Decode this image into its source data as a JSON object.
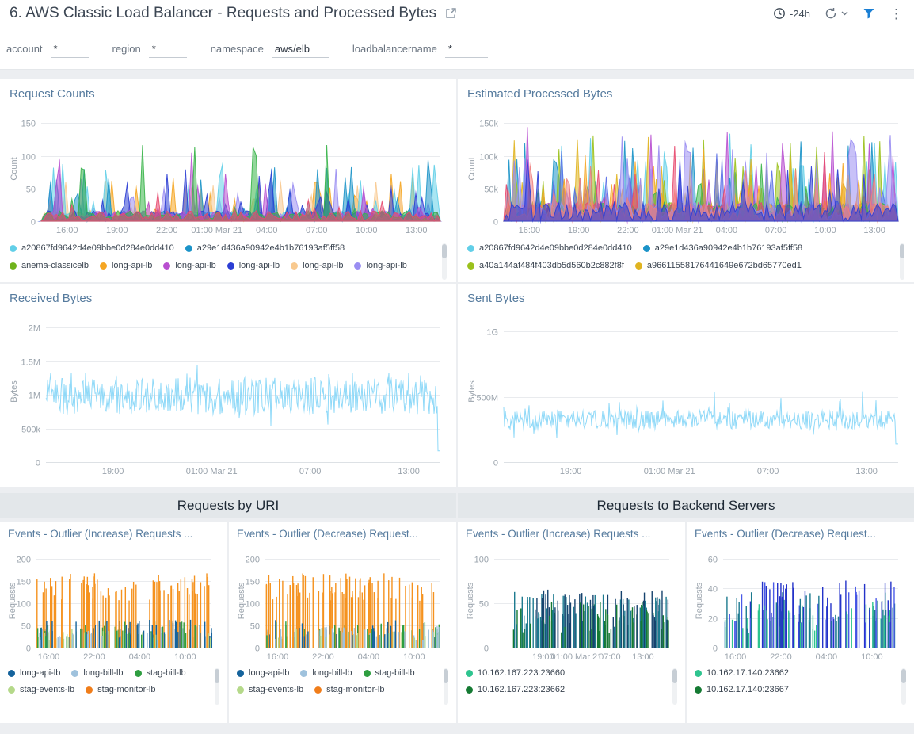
{
  "header": {
    "title": "6. AWS Classic Load Balancer - Requests and Processed Bytes",
    "time_range": "-24h"
  },
  "filters": [
    {
      "label": "account",
      "value": "*"
    },
    {
      "label": "region",
      "value": "*"
    },
    {
      "label": "namespace",
      "value": "aws/elb"
    },
    {
      "label": "loadbalancername",
      "value": "*"
    }
  ],
  "sections": {
    "uri": "Requests by URI",
    "backend": "Requests to Backend Servers"
  },
  "panels": {
    "requestCounts": {
      "title": "Request Counts",
      "legend": [
        {
          "label": "a20867fd9642d4e09bbe0d284e0dd410",
          "color": "#62cfe8"
        },
        {
          "label": "a29e1d436a90942e4b1b76193af5ff58",
          "color": "#1b93c8"
        },
        {
          "label": "anema-classicelb",
          "color": "#6fb31c"
        },
        {
          "label": "long-api-lb",
          "color": "#f5a623"
        },
        {
          "label": "long-api-lb",
          "color": "#b84fd0"
        },
        {
          "label": "long-api-lb",
          "color": "#2c3ed4"
        },
        {
          "label": "long-api-lb",
          "color": "#f8c98f"
        },
        {
          "label": "long-api-lb",
          "color": "#9a8ef2"
        }
      ],
      "chart": {
        "type": "areas",
        "seed": 11,
        "ymax": 160,
        "points": 130,
        "basef": 0.1,
        "ylabel": "Count",
        "padL": 40,
        "yticks": [
          {
            "v": 0,
            "l": "0"
          },
          {
            "v": 50,
            "l": "50"
          },
          {
            "v": 100,
            "l": "100"
          },
          {
            "v": 150,
            "l": "150"
          }
        ],
        "xticks": [
          {
            "f": 0.065,
            "l": "16:00"
          },
          {
            "f": 0.19,
            "l": "19:00"
          },
          {
            "f": 0.315,
            "l": "22:00"
          },
          {
            "f": 0.44,
            "l": "01:00 Mar 21"
          },
          {
            "f": 0.565,
            "l": "04:00"
          },
          {
            "f": 0.69,
            "l": "07:00"
          },
          {
            "f": 0.815,
            "l": "10:00"
          },
          {
            "f": 0.94,
            "l": "13:00"
          }
        ],
        "series": [
          {
            "color": "#f5a623",
            "amp": 0.5,
            "p": 0.2
          },
          {
            "color": "#f8c98f",
            "amp": 0.42,
            "p": 0.24
          },
          {
            "color": "#9a8ef2",
            "amp": 0.5,
            "p": 0.24
          },
          {
            "color": "#62cfe8",
            "amp": 0.55,
            "p": 0.3
          },
          {
            "color": "#1b93c8",
            "amp": 0.6,
            "p": 0.24
          },
          {
            "color": "#2c3ed4",
            "amp": 0.52,
            "p": 0.2
          },
          {
            "color": "#b84fd0",
            "amp": 0.9,
            "p": 0.1
          },
          {
            "color": "#38b449",
            "amp": 0.88,
            "p": 0.07
          },
          {
            "color": "#e84a6f",
            "amp": 0.3,
            "p": 0.12
          }
        ]
      }
    },
    "processedBytes": {
      "title": "Estimated Processed Bytes",
      "legend": [
        {
          "label": "a20867fd9642d4e09bbe0d284e0dd410",
          "color": "#62cfe8"
        },
        {
          "label": "a29e1d436a90942e4b1b76193af5ff58",
          "color": "#1b93c8"
        },
        {
          "label": "a40a144af484f403db5d560b2c882f8f",
          "color": "#9bc11c"
        },
        {
          "label": "a96611558176441649e672bd65770ed1",
          "color": "#e0b420"
        }
      ],
      "chart": {
        "type": "areas",
        "seed": 47,
        "ymax": 160,
        "points": 150,
        "basef": 0.18,
        "ylabel": "Count",
        "padL": 46,
        "yticks": [
          {
            "v": 0,
            "l": "0"
          },
          {
            "v": 50,
            "l": "50k"
          },
          {
            "v": 100,
            "l": "100k"
          },
          {
            "v": 150,
            "l": "150k"
          }
        ],
        "xticks": [
          {
            "f": 0.065,
            "l": "16:00"
          },
          {
            "f": 0.19,
            "l": "19:00"
          },
          {
            "f": 0.315,
            "l": "22:00"
          },
          {
            "f": 0.44,
            "l": "01:00 Mar 21"
          },
          {
            "f": 0.565,
            "l": "04:00"
          },
          {
            "f": 0.69,
            "l": "07:00"
          },
          {
            "f": 0.815,
            "l": "10:00"
          },
          {
            "f": 0.94,
            "l": "13:00"
          }
        ],
        "series": [
          {
            "color": "#62cfe8",
            "amp": 0.85,
            "p": 0.3
          },
          {
            "color": "#1b93c8",
            "amp": 0.8,
            "p": 0.26
          },
          {
            "color": "#9bc11c",
            "amp": 0.9,
            "p": 0.2
          },
          {
            "color": "#e0b420",
            "amp": 0.85,
            "p": 0.24
          },
          {
            "color": "#b84fd0",
            "amp": 0.9,
            "p": 0.16
          },
          {
            "color": "#5a6fe8",
            "amp": 0.8,
            "p": 0.2
          },
          {
            "color": "#f5a623",
            "amp": 0.7,
            "p": 0.24
          },
          {
            "color": "#38b449",
            "amp": 0.7,
            "p": 0.18
          },
          {
            "color": "#e84a6f",
            "amp": 0.75,
            "p": 0.14
          },
          {
            "color": "#9a8ef2",
            "amp": 0.85,
            "p": 0.22
          },
          {
            "color": "#f08080",
            "amp": 0.6,
            "p": 0.2
          },
          {
            "color": "#2c3ed4",
            "amp": 0.8,
            "p": 0.16
          }
        ]
      }
    },
    "receivedBytes": {
      "title": "Received Bytes",
      "chart": {
        "type": "noise",
        "seed": 21,
        "ymax": 2.1,
        "base": 0.47,
        "spread": 0.26,
        "spike": 0.16,
        "end": 0.08,
        "fmin": 0.17,
        "fmax": 0.72,
        "color": "#8fd9f8",
        "ylabel": "Bytes",
        "padL": 46,
        "yticks": [
          {
            "v": 0,
            "l": "0"
          },
          {
            "v": 0.5,
            "l": "500k"
          },
          {
            "v": 1,
            "l": "1M"
          },
          {
            "v": 1.5,
            "l": "1.5M"
          },
          {
            "v": 2,
            "l": "2M"
          }
        ],
        "xticks": [
          {
            "f": 0.17,
            "l": "19:00"
          },
          {
            "f": 0.42,
            "l": "01:00 Mar 21"
          },
          {
            "f": 0.67,
            "l": "07:00"
          },
          {
            "f": 0.92,
            "l": "13:00"
          }
        ]
      }
    },
    "sentBytes": {
      "title": "Sent Bytes",
      "chart": {
        "type": "noise",
        "seed": 77,
        "ymax": 1.08,
        "base": 0.3,
        "spread": 0.13,
        "spike": 0.14,
        "end": 0.13,
        "fmin": 0.14,
        "fmax": 0.53,
        "color": "#8fd9f8",
        "ylabel": "Bytes",
        "padL": 46,
        "yticks": [
          {
            "v": 0,
            "l": "0"
          },
          {
            "v": 0.5,
            "l": "500M"
          },
          {
            "v": 1,
            "l": "1G"
          }
        ],
        "xticks": [
          {
            "f": 0.17,
            "l": "19:00"
          },
          {
            "f": 0.42,
            "l": "01:00 Mar 21"
          },
          {
            "f": 0.67,
            "l": "07:00"
          },
          {
            "f": 0.92,
            "l": "13:00"
          }
        ]
      }
    },
    "uriIncrease": {
      "title": "Events - Outlier (Increase) Requests ...",
      "legend": [
        {
          "label": "long-api-lb",
          "color": "#15639c"
        },
        {
          "label": "long-bill-lb",
          "color": "#9fc2dd"
        },
        {
          "label": "stag-bill-lb",
          "color": "#2e9e40"
        },
        {
          "label": "stag-events-lb",
          "color": "#b5d98a"
        },
        {
          "label": "stag-monitor-lb",
          "color": "#f07d1a"
        }
      ],
      "chart": {
        "type": "bars",
        "seed": 31,
        "ymax": 210,
        "count": 240,
        "ylabel": "Requests",
        "padL": 36,
        "yticks": [
          {
            "v": 0,
            "l": "0"
          },
          {
            "v": 50,
            "l": "50"
          },
          {
            "v": 100,
            "l": "100"
          },
          {
            "v": 150,
            "l": "150"
          },
          {
            "v": 200,
            "l": "200"
          }
        ],
        "xticks": [
          {
            "f": 0.07,
            "l": "16:00"
          },
          {
            "f": 0.33,
            "l": "22:00"
          },
          {
            "f": 0.59,
            "l": "04:00"
          },
          {
            "f": 0.85,
            "l": "10:00"
          }
        ],
        "colors": [
          {
            "color": "#f5921e",
            "min": 0.5,
            "max": 0.8
          },
          {
            "color": "#f5921e",
            "min": 0.55,
            "max": 0.78
          },
          {
            "color": "#15639c",
            "min": 0.1,
            "max": 0.3
          },
          {
            "color": "#2e9e40",
            "min": 0.1,
            "max": 0.28
          },
          {
            "color": "#9fc2dd",
            "min": 0.08,
            "max": 0.24
          },
          {
            "color": "#b5d98a",
            "min": 0.08,
            "max": 0.2
          }
        ]
      }
    },
    "uriDecrease": {
      "title": "Events - Outlier (Decrease) Request...",
      "legend": [
        {
          "label": "long-api-lb",
          "color": "#15639c"
        },
        {
          "label": "long-bill-lb",
          "color": "#9fc2dd"
        },
        {
          "label": "stag-bill-lb",
          "color": "#2e9e40"
        },
        {
          "label": "stag-events-lb",
          "color": "#b5d98a"
        },
        {
          "label": "stag-monitor-lb",
          "color": "#f07d1a"
        }
      ],
      "chart": {
        "type": "bars",
        "seed": 59,
        "ymax": 210,
        "count": 230,
        "ylabel": "Requests",
        "padL": 36,
        "yticks": [
          {
            "v": 0,
            "l": "0"
          },
          {
            "v": 50,
            "l": "50"
          },
          {
            "v": 100,
            "l": "100"
          },
          {
            "v": 150,
            "l": "150"
          },
          {
            "v": 200,
            "l": "200"
          }
        ],
        "xticks": [
          {
            "f": 0.07,
            "l": "16:00"
          },
          {
            "f": 0.33,
            "l": "22:00"
          },
          {
            "f": 0.59,
            "l": "04:00"
          },
          {
            "f": 0.85,
            "l": "10:00"
          }
        ],
        "colors": [
          {
            "color": "#f5921e",
            "min": 0.5,
            "max": 0.8
          },
          {
            "color": "#f5921e",
            "min": 0.52,
            "max": 0.76
          },
          {
            "color": "#15639c",
            "min": 0.1,
            "max": 0.3
          },
          {
            "color": "#2e9e40",
            "min": 0.1,
            "max": 0.28
          },
          {
            "color": "#9fc2dd",
            "min": 0.08,
            "max": 0.24
          },
          {
            "color": "#b5d98a",
            "min": 0.08,
            "max": 0.2
          }
        ]
      }
    },
    "backendIncrease": {
      "title": "Events - Outlier (Increase) Requests ...",
      "legend": [
        {
          "label": "10.162.167.223:23660",
          "color": "#2ec48f"
        },
        {
          "label": "10.162.167.223:23662",
          "color": "#157a33"
        }
      ],
      "chart": {
        "type": "bars",
        "seed": 83,
        "ymax": 105,
        "count": 170,
        "xmin": 0.1,
        "ylabel": "Requests",
        "padL": 36,
        "yticks": [
          {
            "v": 0,
            "l": "0"
          },
          {
            "v": 50,
            "l": "50"
          },
          {
            "v": 100,
            "l": "100"
          }
        ],
        "xticks": [
          {
            "f": 0.28,
            "l": "19:00"
          },
          {
            "f": 0.47,
            "l": "01:00 Mar 21"
          },
          {
            "f": 0.66,
            "l": "07:00"
          },
          {
            "f": 0.85,
            "l": "13:00"
          }
        ],
        "colors": [
          {
            "color": "#16436e",
            "min": 0.25,
            "max": 0.62
          },
          {
            "color": "#1c7a8f",
            "min": 0.2,
            "max": 0.6
          },
          {
            "color": "#157a33",
            "min": 0.15,
            "max": 0.5
          }
        ]
      }
    },
    "backendDecrease": {
      "title": "Events - Outlier (Decrease) Request...",
      "legend": [
        {
          "label": "10.162.17.140:23662",
          "color": "#2ec48f"
        },
        {
          "label": "10.162.17.140:23667",
          "color": "#157a33"
        }
      ],
      "chart": {
        "type": "bars",
        "seed": 97,
        "ymax": 63,
        "count": 140,
        "ylabel": "Requests",
        "padL": 36,
        "yticks": [
          {
            "v": 0,
            "l": "0"
          },
          {
            "v": 20,
            "l": "20"
          },
          {
            "v": 40,
            "l": "40"
          },
          {
            "v": 60,
            "l": "60"
          }
        ],
        "xticks": [
          {
            "f": 0.07,
            "l": "16:00"
          },
          {
            "f": 0.33,
            "l": "22:00"
          },
          {
            "f": 0.59,
            "l": "04:00"
          },
          {
            "f": 0.85,
            "l": "10:00"
          }
        ],
        "colors": [
          {
            "color": "#2433c9",
            "min": 0.3,
            "max": 0.72
          },
          {
            "color": "#4a5ae8",
            "min": 0.25,
            "max": 0.7
          },
          {
            "color": "#1c7a8f",
            "min": 0.2,
            "max": 0.6
          },
          {
            "color": "#2ec48f",
            "min": 0.15,
            "max": 0.5
          }
        ]
      }
    }
  }
}
